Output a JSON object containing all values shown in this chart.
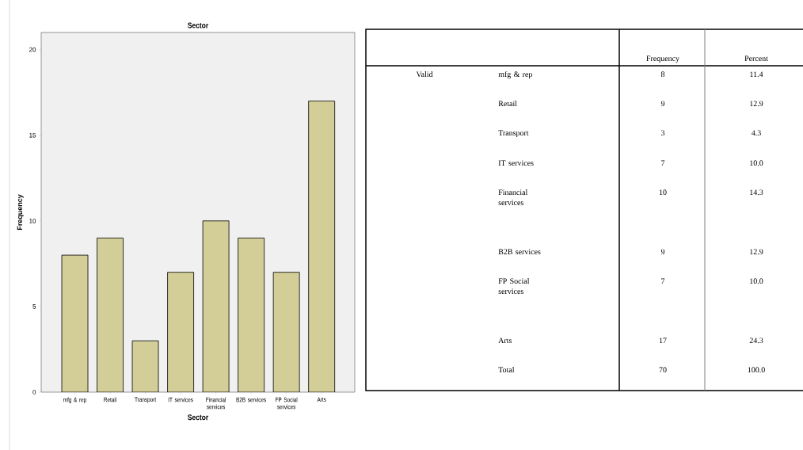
{
  "chart_data": [
    {
      "type": "bar",
      "title": "Sector",
      "xlabel": "Sector",
      "ylabel": "Frequency",
      "categories": [
        "mfg & rep",
        "Retail",
        "Transport",
        "IT services",
        "Financial services",
        "B2B services",
        "FP Social services",
        "Arts"
      ],
      "values": [
        8,
        9,
        3,
        7,
        10,
        9,
        7,
        17
      ],
      "color": "#d3ce97",
      "ylim": [
        0,
        21
      ],
      "yticks": [
        0,
        5,
        10,
        15,
        20
      ]
    },
    {
      "type": "other",
      "annotations": [
        "Valid"
      ],
      "data_labels": true,
      "categories": [
        "mfg & rep",
        "Retail",
        "Transport",
        "IT services",
        "Financial services",
        "B2B services",
        "FP Social services",
        "Arts",
        "Total"
      ],
      "series": [
        {
          "name": "Frequency",
          "values": [
            8,
            9,
            3,
            7,
            10,
            9,
            7,
            17,
            70
          ]
        },
        {
          "name": "Percent",
          "values": [
            11.4,
            12.9,
            4.3,
            10.0,
            14.3,
            12.9,
            10.0,
            24.3,
            100.0
          ],
          "value_labels": [
            "11.4",
            "12.9",
            "4.3",
            "10.0",
            "14.3",
            "12.9",
            "10.0",
            "24.3",
            "100.0"
          ]
        }
      ]
    }
  ]
}
